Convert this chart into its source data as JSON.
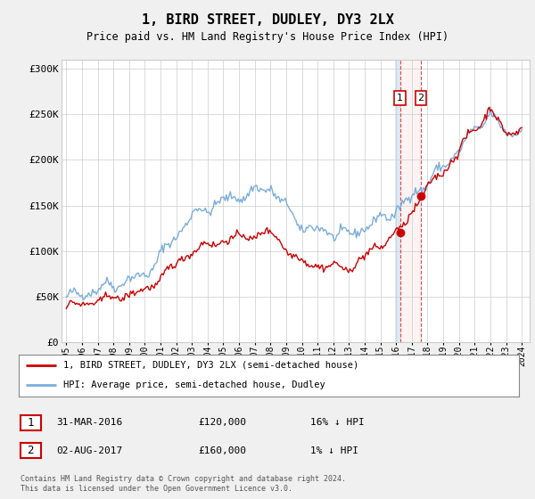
{
  "title": "1, BIRD STREET, DUDLEY, DY3 2LX",
  "subtitle": "Price paid vs. HM Land Registry's House Price Index (HPI)",
  "ylabel_ticks": [
    "£0",
    "£50K",
    "£100K",
    "£150K",
    "£200K",
    "£250K",
    "£300K"
  ],
  "ytick_values": [
    0,
    50000,
    100000,
    150000,
    200000,
    250000,
    300000
  ],
  "ylim": [
    0,
    310000
  ],
  "hpi_color": "#7aaddb",
  "price_color": "#cc0000",
  "legend_line1": "1, BIRD STREET, DUDLEY, DY3 2LX (semi-detached house)",
  "legend_line2": "HPI: Average price, semi-detached house, Dudley",
  "transaction1_date": "31-MAR-2016",
  "transaction1_price": "£120,000",
  "transaction1_hpi": "16% ↓ HPI",
  "transaction1_year": 2016.25,
  "transaction1_value": 120000,
  "transaction2_date": "02-AUG-2017",
  "transaction2_price": "£160,000",
  "transaction2_hpi": "1% ↓ HPI",
  "transaction2_year": 2017.583,
  "transaction2_value": 160000,
  "footer": "Contains HM Land Registry data © Crown copyright and database right 2024.\nThis data is licensed under the Open Government Licence v3.0.",
  "background_color": "#f0f0f0",
  "plot_bg_color": "#ffffff",
  "grid_color": "#cccccc",
  "span_color1": "#cce0f0",
  "span_color2": "#ffe8e8"
}
